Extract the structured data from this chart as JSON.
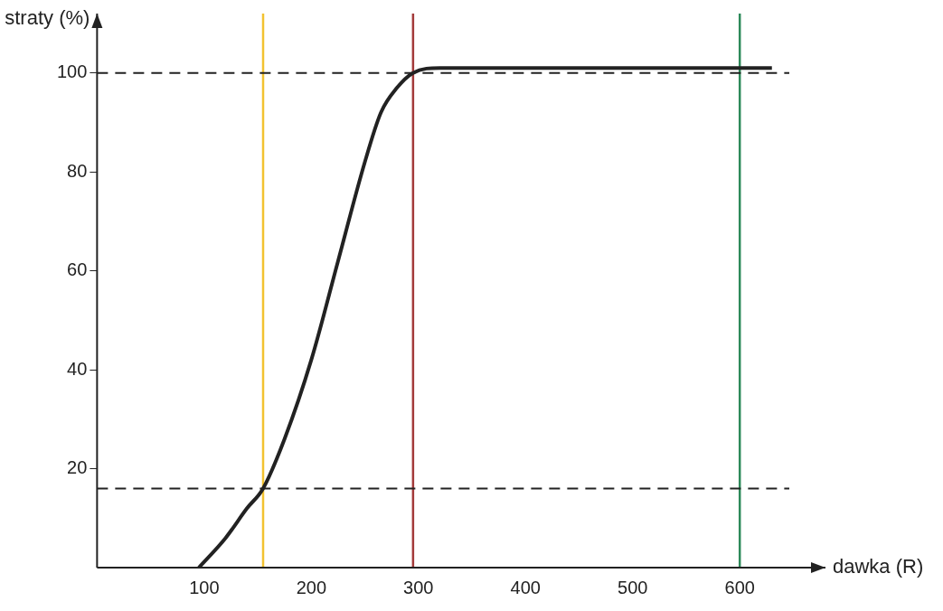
{
  "chart_data": {
    "type": "line",
    "xlabel": "dawka (R)",
    "ylabel": "straty (%)",
    "x": [
      95,
      120,
      140,
      155,
      175,
      200,
      225,
      250,
      265,
      280,
      295,
      320,
      400,
      500,
      630
    ],
    "series": [
      {
        "color": "#222222",
        "values": [
          0,
          6,
          12,
          16,
          26,
          42,
          62,
          82,
          92,
          97,
          100,
          101,
          101,
          101,
          101
        ]
      }
    ],
    "xlim": [
      0,
      680
    ],
    "ylim": [
      0,
      112
    ],
    "xticks": [
      100,
      200,
      300,
      400,
      500,
      600
    ],
    "yticks": [
      20,
      40,
      60,
      80,
      100
    ],
    "ref_lines": [
      {
        "axis": "x",
        "value": 155,
        "color": "#f2c230"
      },
      {
        "axis": "x",
        "value": 295,
        "color": "#a33a3a"
      },
      {
        "axis": "x",
        "value": 600,
        "color": "#2e8a5a"
      },
      {
        "axis": "y",
        "value": 100,
        "color": "#222222",
        "line_style": "dashed"
      },
      {
        "axis": "y",
        "value": 16,
        "color": "#222222",
        "line_style": "dashed"
      }
    ],
    "marker": "none",
    "line_style": "solid",
    "grid": false,
    "legend": false
  }
}
